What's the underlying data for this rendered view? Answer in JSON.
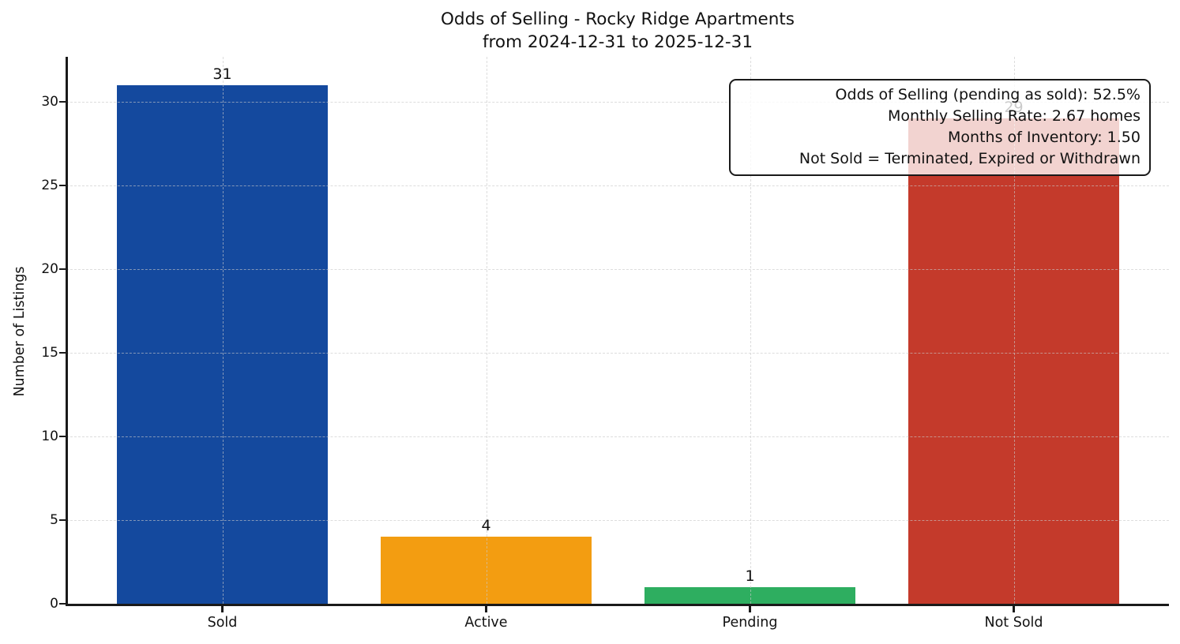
{
  "title": {
    "line1": "Odds of Selling - Rocky Ridge Apartments",
    "line2": "from 2024-12-31 to 2025-12-31"
  },
  "chart_data": {
    "type": "bar",
    "title": "Odds of Selling - Rocky Ridge Apartments\nfrom 2024-12-31 to 2025-12-31",
    "title_lines": [
      "Odds of Selling - Rocky Ridge Apartments",
      "from 2024-12-31 to 2025-12-31"
    ],
    "categories": [
      "Sold",
      "Active",
      "Pending",
      "Not Sold"
    ],
    "values": [
      31,
      4,
      1,
      29
    ],
    "value_labels": [
      "31",
      "4",
      "1",
      "29"
    ],
    "bar_colors": [
      "#14499e",
      "#f39d11",
      "#2eae60",
      "#c43a2b"
    ],
    "xlabel": "",
    "ylabel": "Number of Listings",
    "ylim": [
      0,
      32.8
    ],
    "yticks": [
      0,
      5,
      10,
      15,
      20,
      25,
      30
    ],
    "grid": true,
    "grid_style": "dashed",
    "legend": "none",
    "annotation": {
      "lines": [
        "Odds of Selling (pending as sold): 52.5%",
        "Monthly Selling Rate: 2.67 homes",
        "Months of Inventory: 1.50",
        "Not Sold = Terminated, Expired or Withdrawn"
      ]
    }
  }
}
